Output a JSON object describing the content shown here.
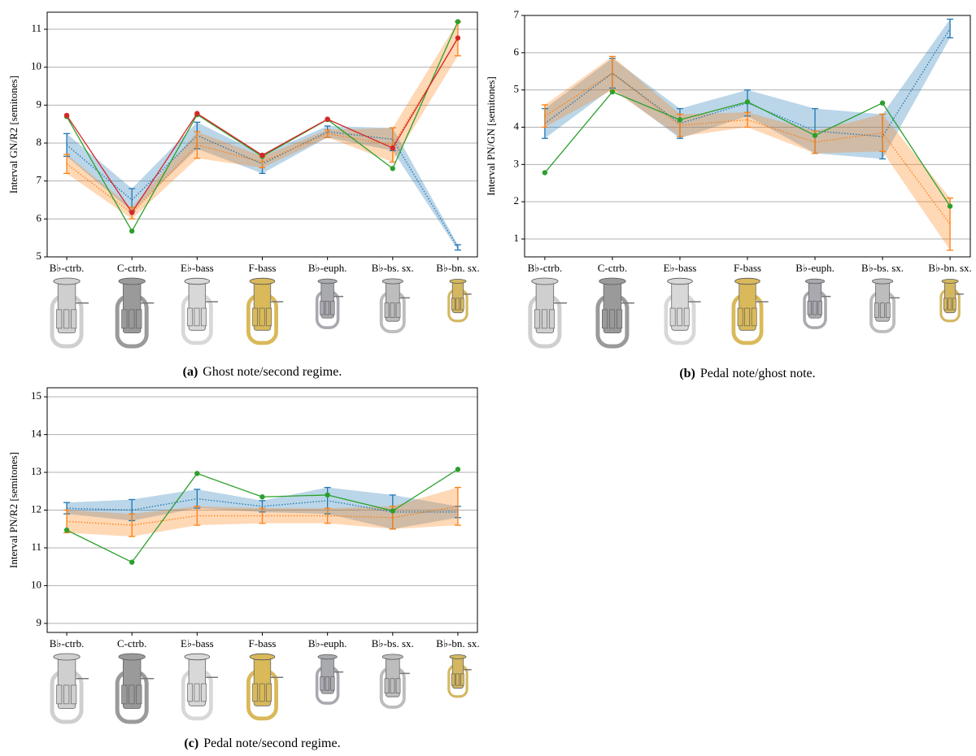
{
  "chart_data": [
    {
      "type": "line",
      "label": "(a)",
      "caption": "Ghost note/second regime.",
      "ylabel": "Interval GN/R2 [semitones]",
      "categories": [
        "B♭-ctrb.",
        "C-ctrb.",
        "E♭-bass",
        "F-bass",
        "B♭-euph.",
        "B♭-bs. sx.",
        "B♭-bn. sx."
      ],
      "ylim": [
        5,
        11.45
      ],
      "yticks": [
        5,
        6,
        7,
        8,
        9,
        10,
        11
      ],
      "grid": true,
      "series": [
        {
          "color": "#1f77b4",
          "linestyle": "dotted",
          "values": [
            7.95,
            6.5,
            8.2,
            7.45,
            8.3,
            8.1,
            5.25
          ],
          "errors": [
            0.3,
            0.3,
            0.35,
            0.25,
            0.15,
            0.3,
            0.07
          ]
        },
        {
          "color": "#ff7f0e",
          "linestyle": "dotted",
          "values": [
            7.45,
            6.15,
            7.95,
            7.5,
            8.25,
            7.95,
            10.75
          ],
          "errors": [
            0.25,
            0.15,
            0.35,
            0.15,
            0.1,
            0.45,
            0.45
          ]
        },
        {
          "color": "#2ca02c",
          "linestyle": "solid",
          "values": [
            8.7,
            5.68,
            8.75,
            7.65,
            8.62,
            7.33,
            11.2
          ]
        },
        {
          "color": "#d62728",
          "linestyle": "solid",
          "values": [
            8.73,
            6.17,
            8.78,
            7.68,
            8.63,
            7.87,
            10.77
          ]
        }
      ]
    },
    {
      "type": "line",
      "label": "(b)",
      "caption": "Pedal note/ghost note.",
      "ylabel": "Interval PN/GN [semitones]",
      "categories": [
        "B♭-ctrb.",
        "C-ctrb.",
        "E♭-bass",
        "F-bass",
        "B♭-euph.",
        "B♭-bs. sx.",
        "B♭-bn. sx."
      ],
      "ylim": [
        0.52,
        7
      ],
      "yticks": [
        1,
        2,
        3,
        4,
        5,
        6,
        7
      ],
      "grid": true,
      "series": [
        {
          "color": "#1f77b4",
          "linestyle": "dotted",
          "values": [
            4.1,
            5.45,
            4.1,
            4.65,
            3.9,
            3.75,
            6.65
          ],
          "errors": [
            0.4,
            0.4,
            0.4,
            0.35,
            0.6,
            0.6,
            0.25
          ]
        },
        {
          "color": "#ff7f0e",
          "linestyle": "dotted",
          "values": [
            4.3,
            5.45,
            4.05,
            4.2,
            3.6,
            3.85,
            1.4
          ],
          "errors": [
            0.3,
            0.45,
            0.3,
            0.2,
            0.3,
            0.5,
            0.7
          ]
        },
        {
          "color": "#2ca02c",
          "linestyle": "solid",
          "values": [
            2.78,
            4.95,
            4.2,
            4.68,
            3.78,
            4.65,
            1.88
          ]
        }
      ]
    },
    {
      "type": "line",
      "label": "(c)",
      "caption": "Pedal note/second regime.",
      "ylabel": "Interval PN/R2 [semitones]",
      "categories": [
        "B♭-ctrb.",
        "C-ctrb.",
        "E♭-bass",
        "F-bass",
        "B♭-euph.",
        "B♭-bs. sx.",
        "B♭-bn. sx."
      ],
      "ylim": [
        8.76,
        15.24
      ],
      "yticks": [
        9,
        10,
        11,
        12,
        13,
        14,
        15
      ],
      "grid": true,
      "series": [
        {
          "color": "#1f77b4",
          "linestyle": "dotted",
          "values": [
            12.05,
            12.0,
            12.3,
            12.1,
            12.25,
            11.95,
            11.95
          ],
          "errors": [
            0.15,
            0.28,
            0.25,
            0.15,
            0.35,
            0.45,
            0.15
          ]
        },
        {
          "color": "#ff7f0e",
          "linestyle": "dotted",
          "values": [
            11.7,
            11.6,
            11.85,
            11.85,
            11.85,
            11.8,
            12.1
          ],
          "errors": [
            0.3,
            0.3,
            0.25,
            0.2,
            0.2,
            0.3,
            0.5
          ]
        },
        {
          "color": "#2ca02c",
          "linestyle": "solid",
          "values": [
            11.47,
            10.62,
            12.97,
            12.35,
            12.4,
            11.98,
            13.08
          ]
        }
      ]
    }
  ]
}
